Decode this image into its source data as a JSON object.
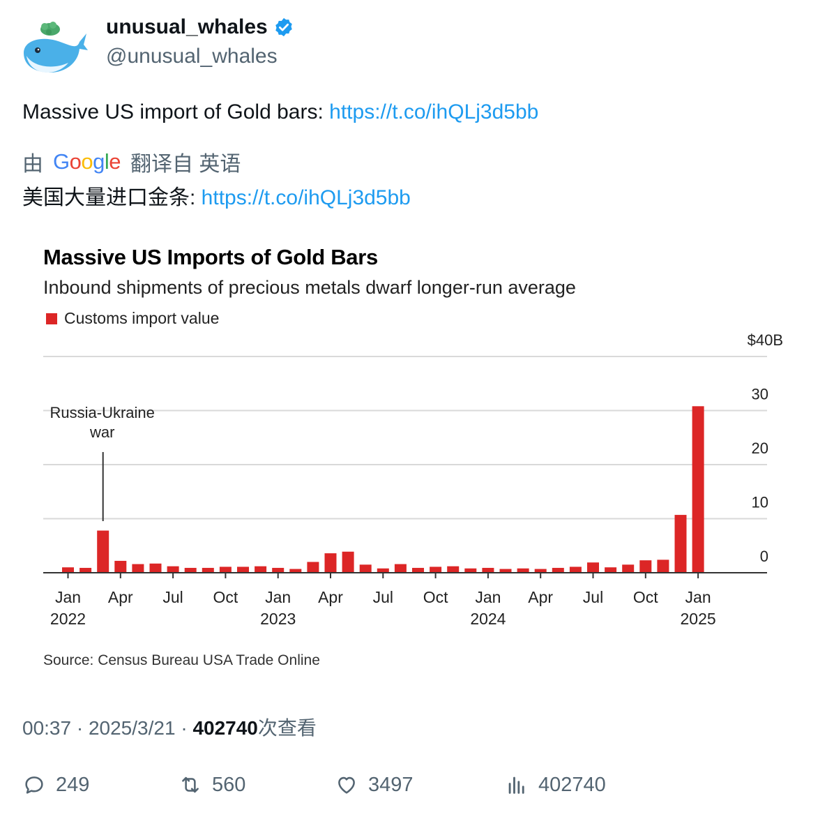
{
  "user": {
    "display_name": "unusual_whales",
    "handle": "@unusual_whales"
  },
  "tweet": {
    "text": "Massive US import of Gold bars: ",
    "link": "https://t.co/ihQLj3d5bb"
  },
  "translation": {
    "by_label": "由",
    "provider": "Google",
    "from_label": "翻译自 英语",
    "text": "美国大量进口金条: ",
    "link": "https://t.co/ihQLj3d5bb"
  },
  "chart_data": {
    "type": "bar",
    "title": "Massive US Imports of Gold Bars",
    "subtitle": "Inbound shipments of precious metals dwarf longer-run average",
    "legend": [
      "Customs import value"
    ],
    "y_ticks": [
      "$40B",
      "30",
      "20",
      "10",
      "0"
    ],
    "ylim": [
      0,
      40
    ],
    "x_ticks": [
      {
        "label": "Jan",
        "year": "2022"
      },
      {
        "label": "Apr",
        "year": ""
      },
      {
        "label": "Jul",
        "year": ""
      },
      {
        "label": "Oct",
        "year": ""
      },
      {
        "label": "Jan",
        "year": "2023"
      },
      {
        "label": "Apr",
        "year": ""
      },
      {
        "label": "Jul",
        "year": ""
      },
      {
        "label": "Oct",
        "year": ""
      },
      {
        "label": "Jan",
        "year": "2024"
      },
      {
        "label": "Apr",
        "year": ""
      },
      {
        "label": "Jul",
        "year": ""
      },
      {
        "label": "Oct",
        "year": ""
      },
      {
        "label": "Jan",
        "year": "2025"
      }
    ],
    "months": [
      "Jan 2022",
      "Feb 2022",
      "Mar 2022",
      "Apr 2022",
      "May 2022",
      "Jun 2022",
      "Jul 2022",
      "Aug 2022",
      "Sep 2022",
      "Oct 2022",
      "Nov 2022",
      "Dec 2022",
      "Jan 2023",
      "Feb 2023",
      "Mar 2023",
      "Apr 2023",
      "May 2023",
      "Jun 2023",
      "Jul 2023",
      "Aug 2023",
      "Sep 2023",
      "Oct 2023",
      "Nov 2023",
      "Dec 2023",
      "Jan 2024",
      "Feb 2024",
      "Mar 2024",
      "Apr 2024",
      "May 2024",
      "Jun 2024",
      "Jul 2024",
      "Aug 2024",
      "Sep 2024",
      "Oct 2024",
      "Nov 2024",
      "Dec 2024",
      "Jan 2025"
    ],
    "values": [
      1.0,
      0.9,
      7.8,
      2.2,
      1.6,
      1.7,
      1.2,
      0.9,
      0.9,
      1.1,
      1.1,
      1.2,
      0.9,
      0.7,
      2.0,
      3.6,
      3.9,
      1.5,
      0.8,
      1.6,
      0.9,
      1.1,
      1.2,
      0.8,
      0.9,
      0.7,
      0.8,
      0.7,
      0.9,
      1.1,
      1.9,
      1.0,
      1.5,
      2.3,
      2.4,
      10.7,
      30.8
    ],
    "annotation": {
      "text_line1": "Russia-Ukraine",
      "text_line2": "war",
      "month_index": 2
    },
    "source": "Source: Census Bureau USA Trade Online",
    "bar_color": "#dc2626"
  },
  "meta": {
    "time": "00:37",
    "date": "2025/3/21",
    "views": "402740",
    "views_label": "次查看"
  },
  "actions": {
    "replies": "249",
    "retweets": "560",
    "likes": "3497",
    "views": "402740"
  },
  "colors": {
    "link": "#1d9bf0",
    "verified": "#1d9bf0",
    "muted": "#536471"
  }
}
